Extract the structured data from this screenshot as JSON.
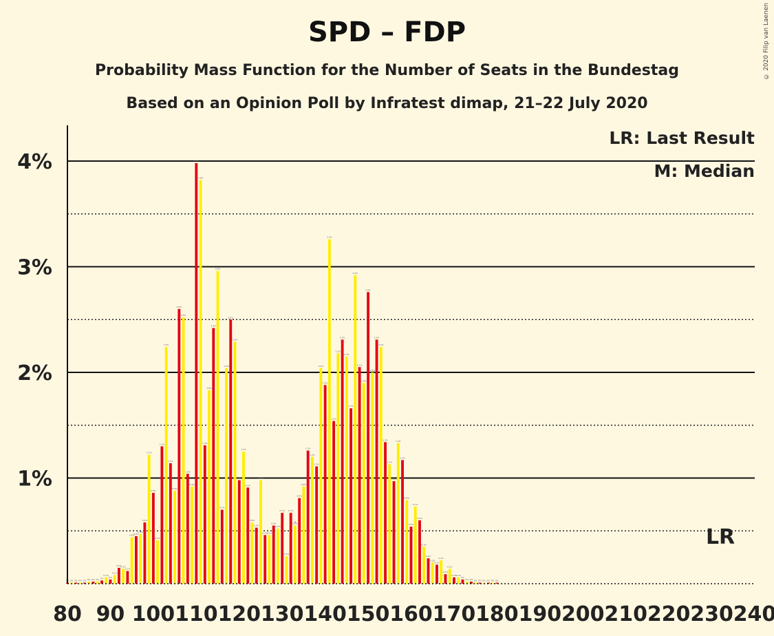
{
  "title": "SPD – FDP",
  "subtitle1": "Probability Mass Function for the Number of Seats in the Bundestag",
  "subtitle2": "Based on an Opinion Poll by Infratest dimap, 21–22 July 2020",
  "copyright": "© 2020 Filip van Laenen",
  "legend": {
    "lr": "LR: Last Result",
    "m": "M: Median"
  },
  "lr_marker": "LR",
  "median_marker": "M",
  "colors": {
    "red": "#E30613",
    "yellow": "#FFED00",
    "background": "#FFF8E1"
  },
  "chart_data": {
    "type": "bar",
    "title": "SPD – FDP",
    "xlabel": "",
    "ylabel": "",
    "xlim": [
      80,
      240
    ],
    "ylim": [
      0,
      4.3
    ],
    "x_ticks": [
      80,
      90,
      100,
      110,
      120,
      130,
      140,
      150,
      160,
      170,
      180,
      190,
      200,
      210,
      220,
      230,
      240
    ],
    "y_ticks": [
      {
        "value": 1,
        "label": "1%"
      },
      {
        "value": 2,
        "label": "2%"
      },
      {
        "value": 3,
        "label": "3%"
      },
      {
        "value": 4,
        "label": "4%"
      }
    ],
    "grid": {
      "solid": [
        1,
        2,
        3,
        4
      ],
      "dotted": [
        0.5,
        1.5,
        2.5,
        3.5
      ]
    },
    "legend_position": "top-right",
    "median": 133,
    "last_result": 232,
    "x": [
      80,
      81,
      82,
      83,
      84,
      85,
      86,
      87,
      88,
      89,
      90,
      91,
      92,
      93,
      94,
      95,
      96,
      97,
      98,
      99,
      100,
      101,
      102,
      103,
      104,
      105,
      106,
      107,
      108,
      109,
      110,
      111,
      112,
      113,
      114,
      115,
      116,
      117,
      118,
      119,
      120,
      121,
      122,
      123,
      124,
      125,
      126,
      127,
      128,
      129,
      130,
      131,
      132,
      133,
      134,
      135,
      136,
      137,
      138,
      139,
      140,
      141,
      142,
      143,
      144,
      145,
      146,
      147,
      148,
      149,
      150,
      151,
      152,
      153,
      154,
      155,
      156,
      157,
      158,
      159,
      160,
      161,
      162,
      163,
      164,
      165,
      166,
      167,
      168,
      169,
      170,
      171,
      172,
      173,
      174,
      175,
      176,
      177,
      178,
      179,
      180
    ],
    "values": [
      0.01,
      0.01,
      0.01,
      0.01,
      0.01,
      0.02,
      0.02,
      0.02,
      0.03,
      0.06,
      0.04,
      0.08,
      0.15,
      0.14,
      0.12,
      0.44,
      0.45,
      0.47,
      0.58,
      1.22,
      0.86,
      0.41,
      1.3,
      2.24,
      1.14,
      0.88,
      2.6,
      2.52,
      1.04,
      0.92,
      3.98,
      3.82,
      1.31,
      1.83,
      2.42,
      2.96,
      0.7,
      2.04,
      2.5,
      2.29,
      0.98,
      1.25,
      0.91,
      0.58,
      0.53,
      0.98,
      0.46,
      0.46,
      0.55,
      0.52,
      0.67,
      0.26,
      0.67,
      0.55,
      0.81,
      0.92,
      1.26,
      1.2,
      1.11,
      2.04,
      1.88,
      3.26,
      1.54,
      2.18,
      2.31,
      2.15,
      1.66,
      2.92,
      2.05,
      1.9,
      2.76,
      2.0,
      2.31,
      2.24,
      1.34,
      1.13,
      0.97,
      1.33,
      1.17,
      0.79,
      0.54,
      0.73,
      0.6,
      0.35,
      0.24,
      0.2,
      0.18,
      0.22,
      0.09,
      0.14,
      0.06,
      0.06,
      0.04,
      0.02,
      0.02,
      0.01,
      0.01,
      0.01,
      0.01,
      0.01,
      0.01
    ],
    "value_labels": [
      "0%",
      "0%",
      "0%",
      "0%",
      "0%",
      "0%",
      "0%",
      "0%",
      "0%",
      "0.1%",
      "0%",
      "0.1%",
      "0.2%",
      "0.1%",
      "0.1%",
      "0.4%",
      "0.5%",
      "0.5%",
      "0.6%",
      "1.2%",
      "0.9%",
      "0.4%",
      "1.3%",
      "2.2%",
      "1.1%",
      "0.9%",
      "2.6%",
      "2.5%",
      "1.0%",
      "0.9%",
      "4.0%",
      "3.8%",
      "1.3%",
      "1.8%",
      "2.4%",
      "3.0%",
      "0.7%",
      "2.0%",
      "2.5%",
      "2.3%",
      "1.0%",
      "1.3%",
      "0.9%",
      "0.6%",
      "0.5%",
      "1.0%",
      "0.5%",
      "0.5%",
      "0.5%",
      "0.5%",
      "0.7%",
      "0.3%",
      "0.7%",
      "0.6%",
      "0.8%",
      "0.9%",
      "1.3%",
      "1.2%",
      "1.1%",
      "2.0%",
      "1.9%",
      "3.3%",
      "1.5%",
      "2.2%",
      "2.3%",
      "2.2%",
      "1.7%",
      "2.9%",
      "2.1%",
      "1.9%",
      "2.8%",
      "2.0%",
      "2.3%",
      "2.2%",
      "1.3%",
      "1.1%",
      "1.0%",
      "1.3%",
      "1.2%",
      "0.8%",
      "0.5%",
      "0.7%",
      "0.6%",
      "0.3%",
      "0.2%",
      "0.2%",
      "0.2%",
      "0.2%",
      "0.1%",
      "0.1%",
      "0.1%",
      "0.1%",
      "0%",
      "0%",
      "0%",
      "0%",
      "0%",
      "0%",
      "0%",
      "0%",
      "0%"
    ]
  }
}
